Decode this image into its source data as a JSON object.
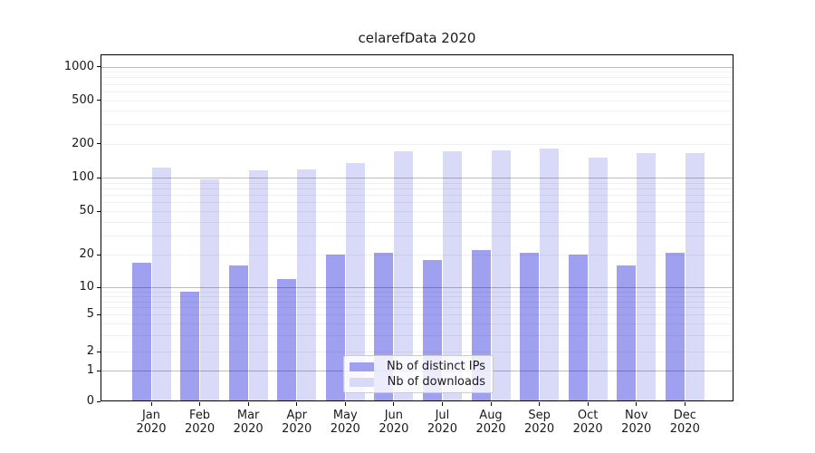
{
  "title": "celarefData 2020",
  "chart_data": {
    "type": "bar",
    "title": "celarefData 2020",
    "categories": [
      "Jan",
      "Feb",
      "Mar",
      "Apr",
      "May",
      "Jun",
      "Jul",
      "Aug",
      "Sep",
      "Oct",
      "Nov",
      "Dec"
    ],
    "year_label": "2020",
    "series": [
      {
        "name": "Nb of distinct IPs",
        "color": "#a0a0f0",
        "values": [
          17,
          9,
          16,
          12,
          20,
          21,
          18,
          22,
          21,
          20,
          16,
          21
        ]
      },
      {
        "name": "Nb of downloads",
        "color": "#d9d9f8",
        "values": [
          123,
          96,
          115,
          118,
          135,
          170,
          171,
          176,
          181,
          150,
          165,
          166
        ]
      }
    ],
    "y_axis": {
      "scale": "symlog",
      "ticks": [
        0,
        1,
        2,
        5,
        10,
        20,
        50,
        100,
        200,
        500,
        1000
      ],
      "range": [
        0,
        1300
      ]
    },
    "x_axis": {
      "tick_labels_two_lines": true
    },
    "legend": {
      "position": "lower center"
    },
    "grid": "horizontal major+minor, drawn over bars"
  },
  "colors": {
    "bar_distinct_ips": "#a0a0f0",
    "bar_downloads": "#d9d9f8",
    "grid_major": "#b5b5b5",
    "grid_minor": "#ededed",
    "axis_frame": "#000000",
    "text": "#1a1a1a",
    "legend_border": "#cccccc",
    "legend_background": "#ffffff"
  }
}
